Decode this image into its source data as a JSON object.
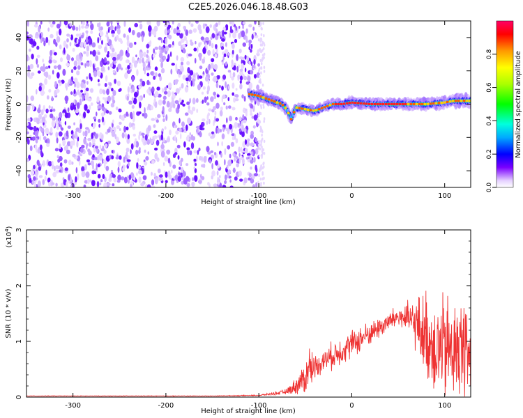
{
  "title": "C2E5.2026.046.18.48.G03",
  "chart_data": [
    {
      "type": "heatmap",
      "title": "C2E5.2026.046.18.48.G03",
      "xlabel": "Height of straight line (km)",
      "ylabel": "Frequency (Hz)",
      "xlim": [
        -350,
        128
      ],
      "ylim": [
        -50,
        50
      ],
      "xticks": [
        -300,
        -200,
        -100,
        0,
        100
      ],
      "yticks": [
        -40,
        -20,
        0,
        20,
        40
      ],
      "xtick_labels": [
        "-300",
        "-200",
        "-100",
        "0",
        "100"
      ],
      "ytick_labels": [
        "-40",
        "-20",
        "0",
        "20",
        "40"
      ],
      "noise_region_x": [
        -350,
        -100
      ],
      "signal_trace": {
        "x": [
          -110,
          -100,
          -90,
          -80,
          -75,
          -70,
          -65,
          -60,
          -50,
          -40,
          -30,
          -20,
          -10,
          0,
          20,
          40,
          60,
          80,
          100,
          110,
          120,
          128
        ],
        "y": [
          6,
          5,
          3,
          1,
          0,
          -3,
          -9,
          -2,
          -3,
          -4,
          -2,
          0,
          0,
          1,
          0,
          0,
          0,
          0,
          1,
          2,
          2,
          2
        ]
      },
      "colorbar": {
        "label": "Normalized spectral amplitude",
        "range": [
          0,
          1
        ],
        "ticks": [
          0.0,
          0.2,
          0.4,
          0.6,
          0.8
        ],
        "tick_labels": [
          "0.0",
          "0.2",
          "0.4",
          "0.6",
          "0.8"
        ]
      }
    },
    {
      "type": "line",
      "xlabel": "Height of straight line (km)",
      "ylabel": "SNR (10 * v/v)",
      "exponent_label": "(x10",
      "exponent_power": "4",
      "exponent_close": ")",
      "xlim": [
        -350,
        128
      ],
      "ylim": [
        0,
        3
      ],
      "xticks": [
        -300,
        -200,
        -100,
        0,
        100
      ],
      "yticks": [
        0,
        1,
        2,
        3
      ],
      "xtick_labels": [
        "-300",
        "-200",
        "-100",
        "0",
        "100"
      ],
      "ytick_labels": [
        "0",
        "1",
        "2",
        "3"
      ],
      "series": [
        {
          "name": "SNR",
          "color": "#ee3333",
          "envelope": {
            "x": [
              -350,
              -150,
              -100,
              -90,
              -80,
              -70,
              -60,
              -50,
              -45,
              -40,
              -30,
              -20,
              -10,
              0,
              10,
              20,
              30,
              40,
              50,
              60,
              70,
              80,
              90,
              100,
              110,
              120,
              128
            ],
            "base": [
              0.02,
              0.02,
              0.03,
              0.05,
              0.07,
              0.1,
              0.2,
              0.35,
              0.55,
              0.55,
              0.65,
              0.75,
              0.85,
              0.95,
              1.05,
              1.15,
              1.25,
              1.35,
              1.45,
              1.4,
              1.3,
              1.1,
              0.9,
              0.85,
              0.85,
              0.85,
              0.85
            ],
            "amplitude": [
              0.005,
              0.005,
              0.01,
              0.02,
              0.03,
              0.05,
              0.15,
              0.3,
              0.45,
              0.2,
              0.2,
              0.25,
              0.25,
              0.25,
              0.25,
              0.2,
              0.2,
              0.2,
              0.2,
              0.3,
              0.5,
              0.8,
              0.9,
              1.0,
              0.95,
              0.9,
              0.9
            ]
          }
        }
      ]
    }
  ]
}
